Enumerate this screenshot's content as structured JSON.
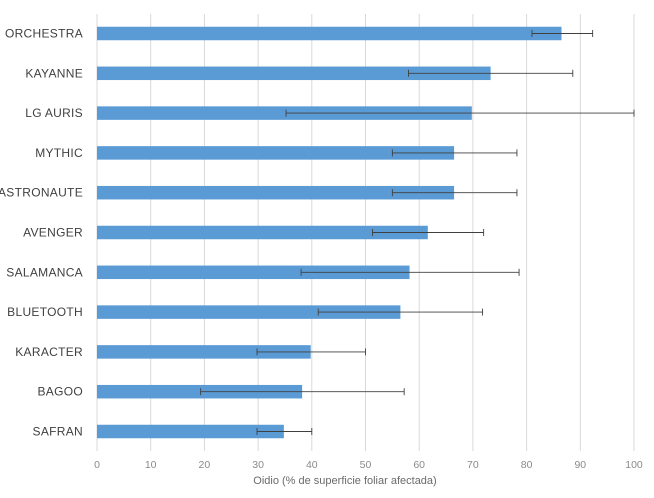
{
  "chart_data": {
    "type": "bar",
    "orientation": "horizontal",
    "categories": [
      "ORCHESTRA",
      "KAYANNE",
      "LG AURIS",
      "MYTHIC",
      "ASTRONAUTE",
      "AVENGER",
      "SALAMANCA",
      "BLUETOOTH",
      "KARACTER",
      "BAGOO",
      "SAFRAN"
    ],
    "values": [
      86.5,
      73.3,
      69.8,
      66.5,
      66.5,
      61.6,
      58.2,
      56.5,
      39.8,
      38.2,
      34.8
    ],
    "error_low": [
      81.0,
      58.0,
      35.2,
      55.0,
      55.0,
      51.3,
      38.0,
      41.2,
      29.8,
      19.3,
      29.8
    ],
    "error_high": [
      92.3,
      88.6,
      100.0,
      78.2,
      78.2,
      72.0,
      78.6,
      71.8,
      50.0,
      57.2,
      40.0
    ],
    "xlabel": "Oidio (% de superficie foliar afectada)",
    "ylabel": "",
    "xlim": [
      0,
      100
    ],
    "xticks": [
      0,
      10,
      20,
      30,
      40,
      50,
      60,
      70,
      80,
      90,
      100
    ],
    "grid": "vertical",
    "bar_color": "#5b9bd5",
    "gridline_color": "#d9d9d9",
    "errorbar_color": "#404040"
  }
}
